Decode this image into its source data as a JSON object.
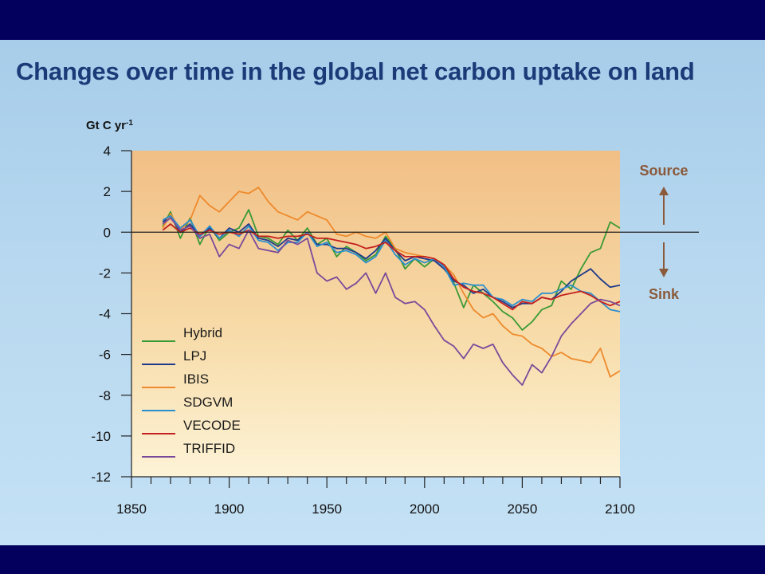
{
  "slide": {
    "title": "Changes over time in the global net carbon uptake on land",
    "colors": {
      "frame": "#02005c",
      "title": "#1c3a78"
    }
  },
  "chart_data": {
    "type": "line",
    "y_unit": "Gt C yr",
    "y_unit_superscript": "-1",
    "xlim": [
      1850,
      2100
    ],
    "ylim": [
      -12,
      4
    ],
    "x_ticks": [
      "1850",
      "1900",
      "1950",
      "2000",
      "2050",
      "2100"
    ],
    "y_ticks": [
      "4",
      "2",
      "0",
      "-2",
      "-4",
      "-6",
      "-8",
      "-10",
      "-12"
    ],
    "source_label": "Source",
    "sink_label": "Sink",
    "legend_position": "bottom-left",
    "series": [
      {
        "name": "Hybrid",
        "color": "#3a9a35",
        "x": [
          1866,
          1870,
          1875,
          1880,
          1885,
          1890,
          1895,
          1900,
          1905,
          1910,
          1915,
          1920,
          1925,
          1930,
          1935,
          1940,
          1945,
          1950,
          1955,
          1960,
          1965,
          1970,
          1975,
          1980,
          1985,
          1990,
          1995,
          2000,
          2005,
          2010,
          2015,
          2020,
          2025,
          2030,
          2035,
          2040,
          2045,
          2050,
          2055,
          2060,
          2065,
          2070,
          2075,
          2080,
          2085,
          2090,
          2095,
          2100
        ],
        "y": [
          0.3,
          1.0,
          -0.3,
          0.7,
          -0.6,
          0.3,
          -0.4,
          0.0,
          0.2,
          1.1,
          -0.2,
          -0.3,
          -0.6,
          0.1,
          -0.4,
          0.2,
          -0.6,
          -0.3,
          -1.2,
          -0.7,
          -1.0,
          -1.4,
          -1.1,
          -0.2,
          -0.8,
          -1.8,
          -1.3,
          -1.7,
          -1.3,
          -1.6,
          -2.5,
          -3.7,
          -2.6,
          -3.0,
          -3.4,
          -3.9,
          -4.2,
          -4.8,
          -4.4,
          -3.8,
          -3.6,
          -2.4,
          -2.8,
          -1.8,
          -1.0,
          -0.8,
          0.5,
          0.2
        ]
      },
      {
        "name": "LPJ",
        "color": "#1f3a8a",
        "x": [
          1866,
          1870,
          1875,
          1880,
          1885,
          1890,
          1895,
          1900,
          1905,
          1910,
          1915,
          1920,
          1925,
          1930,
          1935,
          1940,
          1945,
          1950,
          1955,
          1960,
          1965,
          1970,
          1975,
          1980,
          1985,
          1990,
          1995,
          2000,
          2005,
          2010,
          2015,
          2020,
          2025,
          2030,
          2035,
          2040,
          2045,
          2050,
          2055,
          2060,
          2065,
          2070,
          2075,
          2080,
          2085,
          2090,
          2095,
          2100
        ],
        "y": [
          0.5,
          0.8,
          0.0,
          0.4,
          -0.2,
          0.2,
          -0.3,
          0.2,
          0.0,
          0.4,
          -0.3,
          -0.4,
          -0.7,
          -0.3,
          -0.4,
          0.0,
          -0.6,
          -0.6,
          -0.8,
          -0.8,
          -1.0,
          -1.3,
          -0.9,
          -0.3,
          -0.9,
          -1.4,
          -1.2,
          -1.3,
          -1.4,
          -1.8,
          -2.4,
          -2.6,
          -3.0,
          -2.8,
          -3.2,
          -3.4,
          -3.7,
          -3.5,
          -3.5,
          -3.2,
          -3.3,
          -2.9,
          -2.4,
          -2.1,
          -1.8,
          -2.3,
          -2.7,
          -2.6
        ]
      },
      {
        "name": "IBIS",
        "color": "#ee8a2b",
        "x": [
          1866,
          1870,
          1875,
          1880,
          1885,
          1890,
          1895,
          1900,
          1905,
          1910,
          1915,
          1920,
          1925,
          1930,
          1935,
          1940,
          1945,
          1950,
          1955,
          1960,
          1965,
          1970,
          1975,
          1980,
          1985,
          1990,
          1995,
          2000,
          2005,
          2010,
          2015,
          2020,
          2025,
          2030,
          2035,
          2040,
          2045,
          2050,
          2055,
          2060,
          2065,
          2070,
          2075,
          2080,
          2085,
          2090,
          2095,
          2100
        ],
        "y": [
          0.2,
          0.9,
          0.1,
          0.6,
          1.8,
          1.3,
          1.0,
          1.5,
          2.0,
          1.9,
          2.2,
          1.5,
          1.0,
          0.8,
          0.6,
          1.0,
          0.8,
          0.6,
          -0.1,
          -0.2,
          0.0,
          -0.2,
          -0.3,
          0.0,
          -0.8,
          -1.0,
          -1.1,
          -1.2,
          -1.3,
          -1.6,
          -2.1,
          -3.0,
          -3.8,
          -4.2,
          -4.0,
          -4.6,
          -5.0,
          -5.1,
          -5.5,
          -5.7,
          -6.1,
          -5.9,
          -6.2,
          -6.3,
          -6.4,
          -5.7,
          -7.1,
          -6.8
        ]
      },
      {
        "name": "SDGVM",
        "color": "#2a8fcf",
        "x": [
          1866,
          1870,
          1875,
          1880,
          1885,
          1890,
          1895,
          1900,
          1905,
          1910,
          1915,
          1920,
          1925,
          1930,
          1935,
          1940,
          1945,
          1950,
          1955,
          1960,
          1965,
          1970,
          1975,
          1980,
          1985,
          1990,
          1995,
          2000,
          2005,
          2010,
          2015,
          2020,
          2025,
          2030,
          2035,
          2040,
          2045,
          2050,
          2055,
          2060,
          2065,
          2070,
          2075,
          2080,
          2085,
          2090,
          2095,
          2100
        ],
        "y": [
          0.6,
          0.8,
          0.2,
          0.6,
          -0.2,
          0.3,
          -0.3,
          0.1,
          -0.2,
          0.3,
          -0.4,
          -0.5,
          -0.9,
          -0.5,
          -0.5,
          0.0,
          -0.7,
          -0.5,
          -1.0,
          -0.9,
          -1.1,
          -1.5,
          -1.2,
          -0.4,
          -1.1,
          -1.6,
          -1.3,
          -1.5,
          -1.3,
          -1.7,
          -2.6,
          -2.5,
          -2.6,
          -2.6,
          -3.2,
          -3.3,
          -3.6,
          -3.3,
          -3.4,
          -3.0,
          -3.0,
          -2.8,
          -2.6,
          -2.9,
          -3.0,
          -3.4,
          -3.8,
          -3.9
        ]
      },
      {
        "name": "VECODE",
        "color": "#c4201f",
        "x": [
          1866,
          1870,
          1875,
          1880,
          1885,
          1890,
          1895,
          1900,
          1905,
          1910,
          1915,
          1920,
          1925,
          1930,
          1935,
          1940,
          1945,
          1950,
          1955,
          1960,
          1965,
          1970,
          1975,
          1980,
          1985,
          1990,
          1995,
          2000,
          2005,
          2010,
          2015,
          2020,
          2025,
          2030,
          2035,
          2040,
          2045,
          2050,
          2055,
          2060,
          2065,
          2070,
          2075,
          2080,
          2085,
          2090,
          2095,
          2100
        ],
        "y": [
          0.1,
          0.4,
          0.0,
          0.2,
          -0.1,
          0.1,
          -0.1,
          0.0,
          -0.1,
          0.1,
          -0.2,
          -0.2,
          -0.3,
          -0.2,
          -0.2,
          -0.1,
          -0.3,
          -0.3,
          -0.4,
          -0.5,
          -0.6,
          -0.8,
          -0.7,
          -0.5,
          -0.9,
          -1.2,
          -1.2,
          -1.2,
          -1.3,
          -1.6,
          -2.3,
          -2.7,
          -2.9,
          -3.0,
          -3.2,
          -3.5,
          -3.8,
          -3.4,
          -3.5,
          -3.2,
          -3.3,
          -3.1,
          -3.0,
          -2.9,
          -3.1,
          -3.4,
          -3.6,
          -3.4
        ]
      },
      {
        "name": "TRIFFID",
        "color": "#7a4a9a",
        "x": [
          1866,
          1870,
          1875,
          1880,
          1885,
          1890,
          1895,
          1900,
          1905,
          1910,
          1915,
          1920,
          1925,
          1930,
          1935,
          1940,
          1945,
          1950,
          1955,
          1960,
          1965,
          1970,
          1975,
          1980,
          1985,
          1990,
          1995,
          2000,
          2005,
          2010,
          2015,
          2020,
          2025,
          2030,
          2035,
          2040,
          2045,
          2050,
          2055,
          2060,
          2065,
          2070,
          2075,
          2080,
          2085,
          2090,
          2095,
          2100
        ],
        "y": [
          0.4,
          0.7,
          0.1,
          0.3,
          -0.3,
          -0.1,
          -1.2,
          -0.6,
          -0.8,
          0.1,
          -0.8,
          -0.9,
          -1.0,
          -0.4,
          -0.6,
          -0.3,
          -2.0,
          -2.4,
          -2.2,
          -2.8,
          -2.5,
          -2.0,
          -3.0,
          -2.0,
          -3.2,
          -3.5,
          -3.4,
          -3.8,
          -4.6,
          -5.3,
          -5.6,
          -6.2,
          -5.5,
          -5.7,
          -5.5,
          -6.4,
          -7.0,
          -7.5,
          -6.5,
          -6.9,
          -6.1,
          -5.1,
          -4.5,
          -4.0,
          -3.5,
          -3.3,
          -3.4,
          -3.6
        ]
      }
    ]
  }
}
